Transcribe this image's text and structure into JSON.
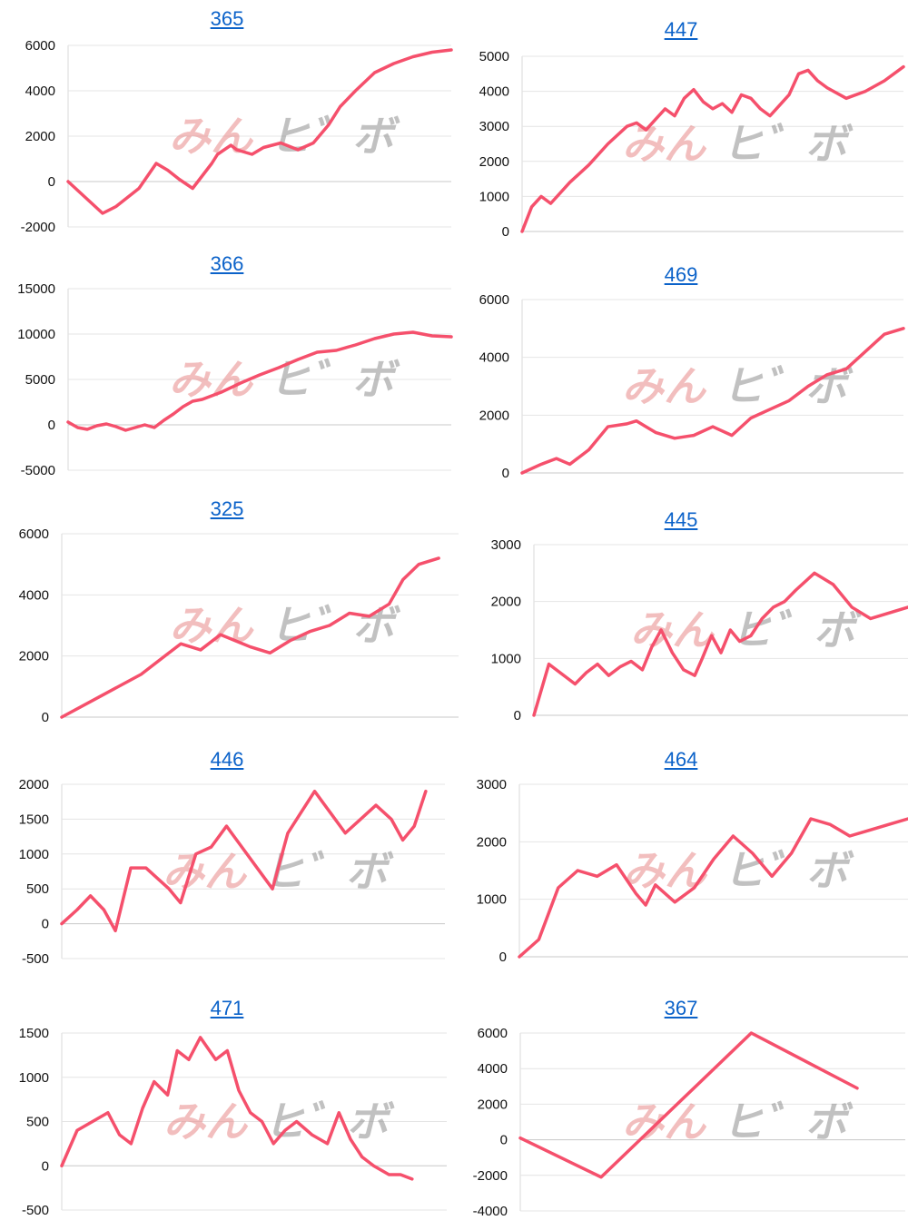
{
  "watermark": {
    "part1": "みん",
    "part2": "ヒ゛ボ",
    "color1": "#e98a8a",
    "color2": "#8f8f8f"
  },
  "colors": {
    "line": "#f5506c",
    "grid": "#e4e4e4",
    "title_link": "#0b62c9"
  },
  "chart_data": [
    {
      "type": "line",
      "title": "365",
      "ylim": [
        -2000,
        6000
      ],
      "yticks": [
        6000,
        4000,
        2000,
        0,
        -2000
      ],
      "grid": true,
      "x": [
        0,
        18,
        25,
        37,
        46,
        52,
        58,
        65,
        75,
        78,
        85,
        88,
        96,
        102,
        111,
        120,
        128,
        136,
        142,
        150,
        160,
        170,
        180,
        190,
        200
      ],
      "values": [
        0,
        -1400,
        -1100,
        -300,
        800,
        500,
        100,
        -300,
        800,
        1200,
        1600,
        1400,
        1200,
        1500,
        1700,
        1400,
        1700,
        2500,
        3300,
        4000,
        4800,
        5200,
        5500,
        5700,
        5800
      ]
    },
    {
      "type": "line",
      "title": "447",
      "ylim": [
        0,
        5000
      ],
      "yticks": [
        5000,
        4000,
        3000,
        2000,
        1000,
        0
      ],
      "grid": true,
      "x": [
        0,
        5,
        10,
        15,
        25,
        35,
        45,
        55,
        60,
        65,
        70,
        75,
        80,
        85,
        90,
        95,
        100,
        105,
        110,
        115,
        120,
        125,
        130,
        135,
        140,
        145,
        150,
        155,
        160,
        170,
        180,
        190,
        200
      ],
      "values": [
        0,
        700,
        1000,
        800,
        1400,
        1900,
        2500,
        3000,
        3100,
        2900,
        3200,
        3500,
        3300,
        3800,
        4050,
        3700,
        3500,
        3650,
        3400,
        3900,
        3800,
        3500,
        3300,
        3600,
        3900,
        4500,
        4600,
        4300,
        4100,
        3800,
        4000,
        4300,
        4700
      ]
    },
    {
      "type": "line",
      "title": "366",
      "ylim": [
        -5000,
        15000
      ],
      "yticks": [
        15000,
        10000,
        5000,
        0,
        -5000
      ],
      "grid": true,
      "x": [
        0,
        5,
        10,
        15,
        20,
        25,
        30,
        35,
        40,
        45,
        50,
        55,
        60,
        65,
        70,
        80,
        90,
        100,
        110,
        120,
        130,
        140,
        150,
        160,
        170,
        180,
        190,
        200
      ],
      "values": [
        300,
        -300,
        -500,
        -100,
        100,
        -200,
        -600,
        -300,
        0,
        -300,
        500,
        1200,
        2000,
        2600,
        2800,
        3600,
        4600,
        5500,
        6300,
        7200,
        8000,
        8200,
        8800,
        9500,
        10000,
        10200,
        9800,
        9700
      ]
    },
    {
      "type": "line",
      "title": "469",
      "ylim": [
        0,
        6000
      ],
      "yticks": [
        6000,
        4000,
        2000,
        0
      ],
      "grid": true,
      "x": [
        0,
        10,
        18,
        25,
        35,
        45,
        55,
        60,
        65,
        70,
        80,
        90,
        100,
        110,
        120,
        130,
        140,
        150,
        160,
        170,
        180,
        190,
        200
      ],
      "values": [
        0,
        300,
        500,
        300,
        800,
        1600,
        1700,
        1800,
        1600,
        1400,
        1200,
        1300,
        1600,
        1300,
        1900,
        2200,
        2500,
        3000,
        3400,
        3600,
        4200,
        4800,
        5000
      ]
    },
    {
      "type": "line",
      "title": "325",
      "ylim": [
        0,
        6000
      ],
      "yticks": [
        6000,
        4000,
        2000,
        0
      ],
      "grid": true,
      "x": [
        0,
        20,
        40,
        52,
        60,
        70,
        80,
        95,
        105,
        115,
        125,
        135,
        145,
        155,
        165,
        172,
        180,
        190
      ],
      "values": [
        0,
        700,
        1400,
        2000,
        2400,
        2200,
        2700,
        2300,
        2100,
        2500,
        2800,
        3000,
        3400,
        3300,
        3700,
        4500,
        5000,
        5200
      ]
    },
    {
      "type": "line",
      "title": "445",
      "ylim": [
        0,
        3000
      ],
      "yticks": [
        3000,
        2000,
        1000,
        0
      ],
      "grid": true,
      "x": [
        0,
        8,
        16,
        22,
        28,
        34,
        40,
        46,
        52,
        58,
        63,
        68,
        74,
        80,
        86,
        90,
        95,
        100,
        105,
        110,
        116,
        122,
        128,
        134,
        140,
        150,
        160,
        170,
        180,
        190,
        200
      ],
      "values": [
        0,
        900,
        700,
        550,
        750,
        900,
        700,
        850,
        950,
        800,
        1200,
        1500,
        1100,
        800,
        700,
        1000,
        1400,
        1100,
        1500,
        1300,
        1400,
        1700,
        1900,
        2000,
        2200,
        2500,
        2300,
        1900,
        1700,
        1800,
        1900
      ]
    },
    {
      "type": "line",
      "title": "446",
      "ylim": [
        -500,
        2000
      ],
      "yticks": [
        2000,
        1500,
        1000,
        500,
        0,
        -500
      ],
      "grid": true,
      "x": [
        0,
        8,
        15,
        22,
        28,
        36,
        44,
        50,
        56,
        62,
        70,
        78,
        86,
        94,
        102,
        110,
        118,
        125,
        132,
        140,
        148,
        156,
        164,
        172,
        178,
        184,
        190
      ],
      "values": [
        0,
        200,
        400,
        200,
        -100,
        800,
        800,
        650,
        500,
        300,
        1000,
        1100,
        1400,
        1100,
        800,
        500,
        1300,
        1600,
        1900,
        1600,
        1300,
        1500,
        1700,
        1500,
        1200,
        1400,
        1900
      ]
    },
    {
      "type": "line",
      "title": "464",
      "ylim": [
        0,
        3000
      ],
      "yticks": [
        3000,
        2000,
        1000,
        0
      ],
      "grid": true,
      "x": [
        0,
        10,
        20,
        30,
        40,
        50,
        60,
        65,
        70,
        75,
        80,
        90,
        100,
        110,
        120,
        130,
        140,
        150,
        160,
        165,
        170,
        180,
        190,
        200
      ],
      "values": [
        0,
        300,
        1200,
        1500,
        1400,
        1600,
        1100,
        900,
        1250,
        1100,
        950,
        1200,
        1700,
        2100,
        1800,
        1400,
        1800,
        2400,
        2300,
        2200,
        2100,
        2200,
        2300,
        2400
      ]
    },
    {
      "type": "line",
      "title": "471",
      "ylim": [
        -500,
        1500
      ],
      "yticks": [
        1500,
        1000,
        500,
        0,
        -500
      ],
      "grid": true,
      "x": [
        0,
        8,
        16,
        24,
        30,
        36,
        42,
        48,
        55,
        60,
        66,
        72,
        80,
        86,
        92,
        98,
        104,
        110,
        116,
        122,
        130,
        138,
        144,
        150,
        156,
        162,
        170,
        176,
        182
      ],
      "values": [
        0,
        400,
        500,
        600,
        350,
        250,
        650,
        950,
        800,
        1300,
        1200,
        1450,
        1200,
        1300,
        850,
        600,
        500,
        250,
        400,
        500,
        350,
        250,
        600,
        300,
        100,
        0,
        -100,
        -100,
        -150
      ]
    },
    {
      "type": "line",
      "title": "367",
      "ylim": [
        -4000,
        6000
      ],
      "yticks": [
        6000,
        4000,
        2000,
        0,
        -2000,
        -4000
      ],
      "grid": true,
      "x": [
        0,
        42,
        120,
        175
      ],
      "values": [
        100,
        -2100,
        6000,
        2900
      ]
    }
  ]
}
